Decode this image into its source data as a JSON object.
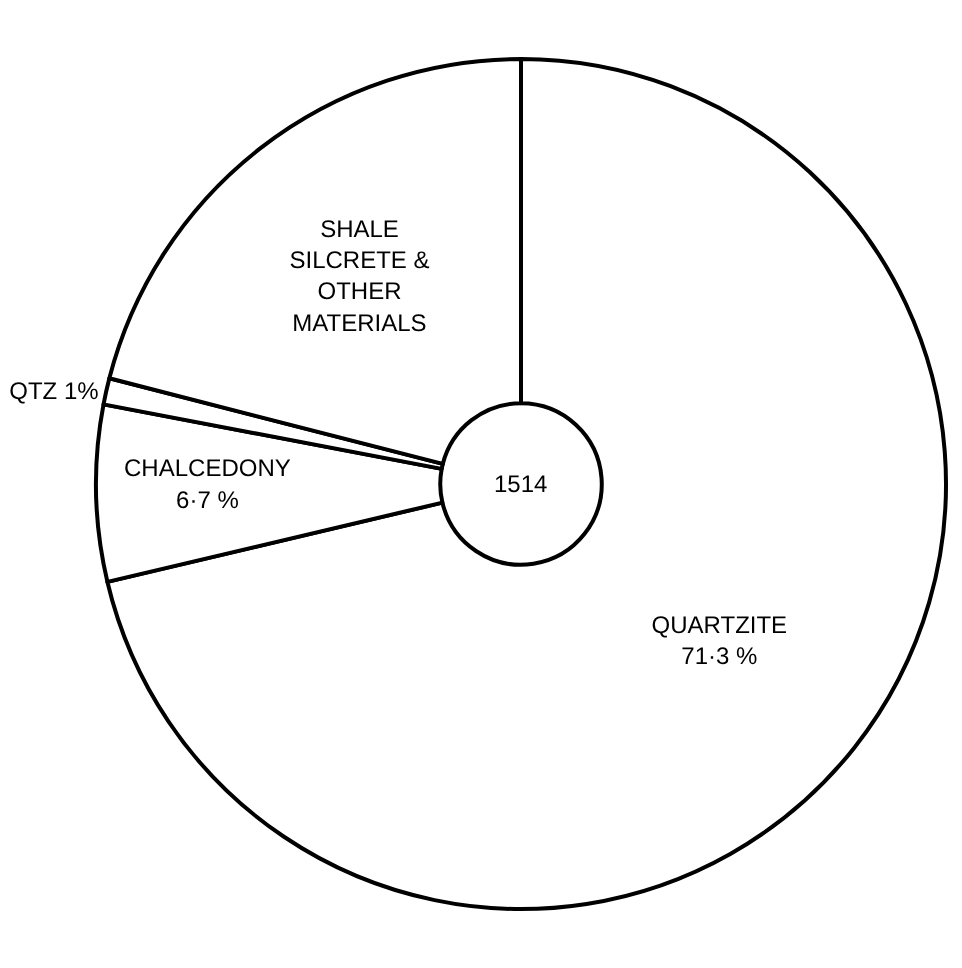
{
  "chart_data": {
    "type": "donut",
    "categories": [
      "QUARTZITE",
      "CHALCEDONY",
      "QTZ",
      "SHALE SILCRETE & OTHER MATERIALS"
    ],
    "values": [
      71.3,
      6.7,
      1,
      21
    ],
    "value_labels": [
      "71·3 %",
      "6·7 %",
      "1%",
      null
    ],
    "colors": [
      "#ffffff",
      "#ffffff",
      "#ffffff",
      "#ffffff"
    ],
    "annotations": [
      "1514"
    ],
    "legend": false
  }
}
